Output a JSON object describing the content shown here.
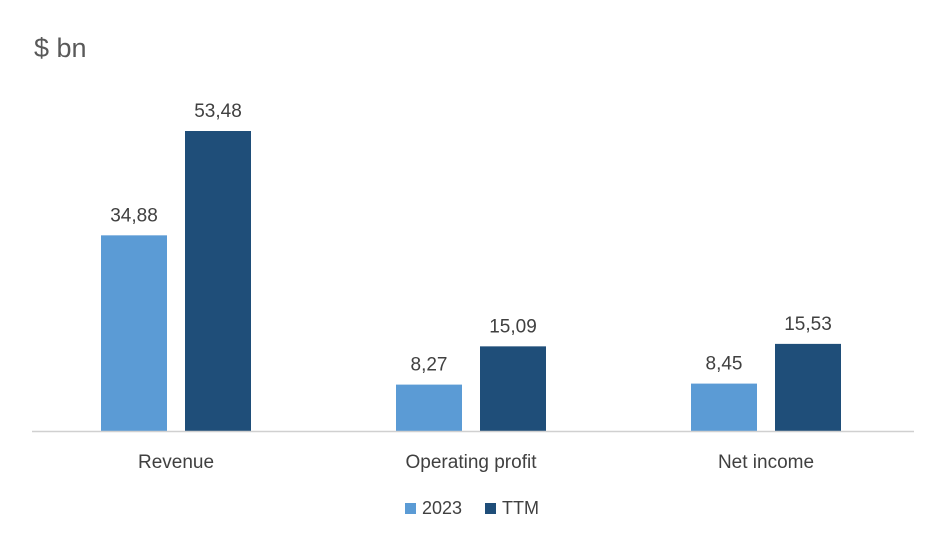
{
  "chart_data": {
    "type": "bar",
    "title": "$ bn",
    "categories": [
      "Revenue",
      "Operating profit",
      "Net income"
    ],
    "series": [
      {
        "name": "2023",
        "values": [
          34.88,
          8.27,
          8.45
        ],
        "labels": [
          "34,88",
          "8,27",
          "8,45"
        ],
        "color": "#5b9bd5"
      },
      {
        "name": "TTM",
        "values": [
          53.48,
          15.09,
          15.53
        ],
        "labels": [
          "53,48",
          "15,09",
          "15,53"
        ],
        "color": "#1f4e79"
      }
    ],
    "ylim": [
      0,
      53.48
    ],
    "grid": false,
    "legend": "bottom-center"
  }
}
